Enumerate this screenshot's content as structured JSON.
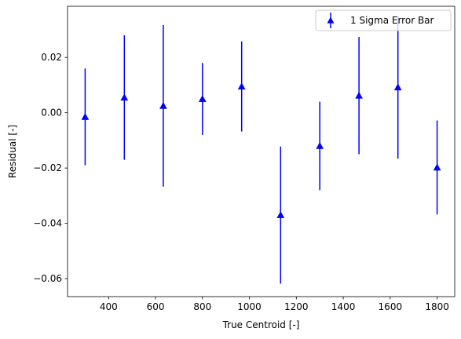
{
  "chart_data": {
    "type": "scatter",
    "xlabel": "True Centroid [-]",
    "ylabel": "Residual [-]",
    "xlim": [
      225,
      1875
    ],
    "ylim": [
      -0.0665,
      0.0385
    ],
    "x_ticks": [
      400,
      600,
      800,
      1000,
      1200,
      1400,
      1600,
      1800
    ],
    "x_tick_labels": [
      "400",
      "600",
      "800",
      "1000",
      "1200",
      "1400",
      "1600",
      "1800"
    ],
    "y_ticks": [
      -0.06,
      -0.04,
      -0.02,
      0.0,
      0.02
    ],
    "y_tick_labels": [
      "−0.06",
      "−0.04",
      "−0.02",
      "0.00",
      "0.02"
    ],
    "grid": false,
    "legend_position": "top-right",
    "series": [
      {
        "name": "1 Sigma Error Bar",
        "color": "#0000ff",
        "marker": "triangle-up",
        "points": [
          {
            "x": 300,
            "y": -0.0015,
            "err": 0.0175
          },
          {
            "x": 467,
            "y": 0.0055,
            "err": 0.0225
          },
          {
            "x": 633,
            "y": 0.0025,
            "err": 0.0292
          },
          {
            "x": 800,
            "y": 0.005,
            "err": 0.013
          },
          {
            "x": 967,
            "y": 0.0095,
            "err": 0.0163
          },
          {
            "x": 1133,
            "y": -0.037,
            "err": 0.0248
          },
          {
            "x": 1300,
            "y": -0.012,
            "err": 0.016
          },
          {
            "x": 1467,
            "y": 0.0062,
            "err": 0.0212
          },
          {
            "x": 1633,
            "y": 0.0092,
            "err": 0.0258
          },
          {
            "x": 1800,
            "y": -0.0198,
            "err": 0.017
          }
        ]
      }
    ]
  }
}
